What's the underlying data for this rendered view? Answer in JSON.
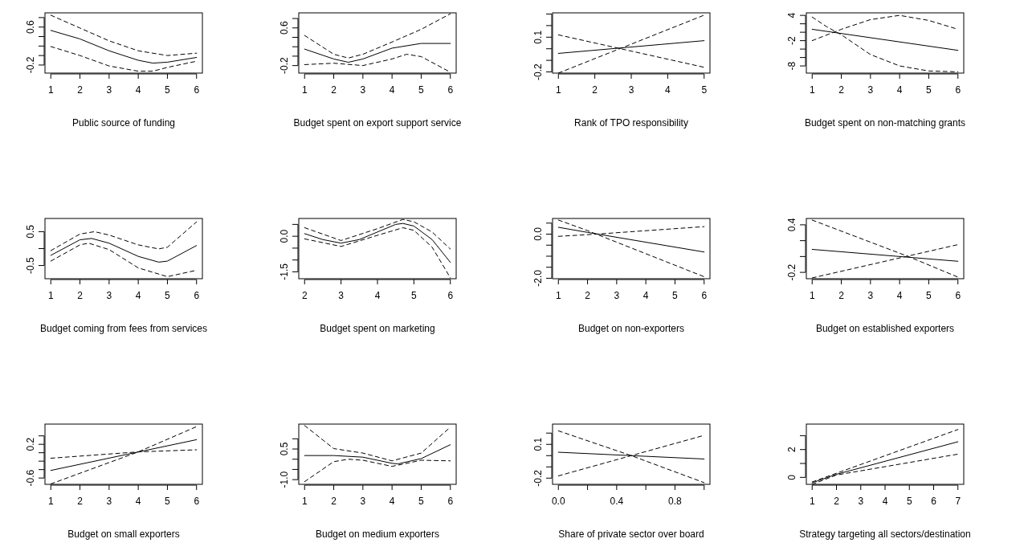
{
  "chart_data": [
    {
      "type": "line",
      "xlabel": "Public source of funding",
      "xlim": [
        0.8,
        6.2
      ],
      "xticks": [
        1,
        2,
        3,
        4,
        5,
        6
      ],
      "ylim": [
        -0.37,
        0.9
      ],
      "yticks": [
        -0.2,
        {
          "value": 0,
          "label": null
        },
        {
          "value": 0.2,
          "label": null
        },
        {
          "value": 0.4,
          "label": null
        },
        0.6,
        {
          "value": 0.8,
          "label": null
        }
      ],
      "series": [
        {
          "color": "#000000",
          "line_style": "solid",
          "x": [
            1,
            2,
            3,
            4,
            4.5,
            5,
            6
          ],
          "values": [
            0.53,
            0.35,
            0.1,
            -0.1,
            -0.16,
            -0.14,
            -0.04
          ]
        },
        {
          "color": "#000000",
          "line_style": "dashed",
          "x": [
            1,
            2,
            3,
            4,
            5,
            6
          ],
          "values": [
            0.85,
            0.58,
            0.31,
            0.1,
            0.0,
            0.05
          ]
        },
        {
          "color": "#000000",
          "line_style": "dashed",
          "x": [
            1,
            2,
            3,
            4,
            4.5,
            5,
            6
          ],
          "values": [
            0.19,
            0,
            -0.22,
            -0.33,
            -0.33,
            -0.25,
            -0.12
          ]
        }
      ]
    },
    {
      "type": "line",
      "xlabel": "Budget spent on export support service",
      "xlim": [
        0.8,
        6.2
      ],
      "xticks": [
        1,
        2,
        3,
        4,
        5,
        6
      ],
      "ylim": [
        -0.36,
        0.92
      ],
      "yticks": [
        -0.2,
        {
          "value": 0,
          "label": null
        },
        {
          "value": 0.2,
          "label": null
        },
        {
          "value": 0.4,
          "label": null
        },
        0.6,
        {
          "value": 0.8,
          "label": null
        }
      ],
      "series": [
        {
          "color": "#000000",
          "line_style": "solid",
          "x": [
            1,
            2,
            2.5,
            3,
            4,
            5,
            6
          ],
          "values": [
            0.15,
            -0.06,
            -0.13,
            -0.06,
            0.17,
            0.27,
            0.27
          ]
        },
        {
          "color": "#000000",
          "line_style": "dashed",
          "x": [
            1,
            2,
            2.5,
            3,
            4,
            5,
            6
          ],
          "values": [
            0.44,
            0.04,
            -0.04,
            0.04,
            0.3,
            0.57,
            0.9
          ]
        },
        {
          "color": "#000000",
          "line_style": "dashed",
          "x": [
            1,
            2,
            3,
            4,
            4.5,
            5,
            6
          ],
          "values": [
            -0.18,
            -0.15,
            -0.2,
            -0.06,
            0.04,
            -0.01,
            -0.34
          ]
        }
      ]
    },
    {
      "type": "line",
      "xlabel": "Rank of TPO responsibility",
      "xlim": [
        0.84,
        5.16
      ],
      "xticks": [
        1,
        2,
        3,
        4,
        5
      ],
      "ylim": [
        -0.21,
        0.31
      ],
      "yticks": [
        -0.2,
        {
          "value": -0.1,
          "label": null
        },
        {
          "value": 0,
          "label": null
        },
        0.1,
        {
          "value": 0.2,
          "label": null
        },
        {
          "value": 0.3,
          "label": null
        }
      ],
      "series": [
        {
          "color": "#000000",
          "line_style": "solid",
          "x": [
            1,
            5
          ],
          "values": [
            -0.04,
            0.07
          ]
        },
        {
          "color": "#000000",
          "line_style": "dashed",
          "x": [
            1,
            5
          ],
          "values": [
            -0.21,
            0.29
          ]
        },
        {
          "color": "#000000",
          "line_style": "dashed",
          "x": [
            1,
            5
          ],
          "values": [
            0.12,
            -0.16
          ]
        }
      ]
    },
    {
      "type": "line",
      "xlabel": "Budget spent on non-matching grants",
      "xlim": [
        0.8,
        6.2
      ],
      "xticks": [
        1,
        2,
        3,
        4,
        5,
        6
      ],
      "ylim": [
        -9.7,
        4.6
      ],
      "yticks": [
        -8,
        {
          "value": -6,
          "label": null
        },
        {
          "value": -4,
          "label": null
        },
        -2,
        {
          "value": 0,
          "label": null
        },
        {
          "value": 2,
          "label": null
        },
        4
      ],
      "series": [
        {
          "color": "#000000",
          "line_style": "solid",
          "x": [
            1,
            6
          ],
          "values": [
            0.7,
            -4.3
          ]
        },
        {
          "color": "#000000",
          "line_style": "dashed",
          "x": [
            1,
            2,
            3,
            4,
            5,
            6
          ],
          "values": [
            -2,
            0.7,
            3,
            4,
            2.8,
            0.7
          ]
        },
        {
          "color": "#000000",
          "line_style": "dashed",
          "x": [
            1,
            1.5,
            2,
            3,
            4,
            5,
            6
          ],
          "values": [
            3.6,
            1.3,
            -0.6,
            -5.3,
            -8,
            -9.2,
            -9.4
          ]
        }
      ]
    },
    {
      "type": "line",
      "xlabel": "Budget coming from fees from services",
      "xlim": [
        0.8,
        6.2
      ],
      "xticks": [
        1,
        2,
        3,
        4,
        5,
        6
      ],
      "ylim": [
        -0.89,
        0.89
      ],
      "yticks": [
        -0.5,
        {
          "value": 0,
          "label": null
        },
        0.5
      ],
      "series": [
        {
          "color": "#000000",
          "line_style": "solid",
          "x": [
            1,
            2,
            2.4,
            3,
            4,
            4.7,
            5,
            6
          ],
          "values": [
            -0.2,
            0.26,
            0.3,
            0.16,
            -0.23,
            -0.4,
            -0.37,
            0.09
          ]
        },
        {
          "color": "#000000",
          "line_style": "dashed",
          "x": [
            1,
            2,
            2.5,
            3,
            4,
            4.7,
            5,
            6
          ],
          "values": [
            -0.06,
            0.43,
            0.5,
            0.4,
            0.11,
            -0.01,
            0.04,
            0.79
          ]
        },
        {
          "color": "#000000",
          "line_style": "dashed",
          "x": [
            1,
            2,
            2.3,
            3,
            4,
            5,
            6
          ],
          "values": [
            -0.37,
            0.11,
            0.16,
            -0.03,
            -0.57,
            -0.83,
            -0.64
          ]
        }
      ]
    },
    {
      "type": "line",
      "xlabel": "Budget spent on marketing",
      "xlim": [
        1.84,
        6.16
      ],
      "xticks": [
        2,
        3,
        4,
        5,
        6
      ],
      "ylim": [
        -1.79,
        0.75
      ],
      "yticks": [
        -1.5,
        {
          "value": -1,
          "label": null
        },
        {
          "value": -0.5,
          "label": null
        },
        {
          "value": 0,
          "label": "0.0"
        },
        {
          "value": 0.5,
          "label": null
        }
      ],
      "series": [
        {
          "color": "#000000",
          "line_style": "solid",
          "x": [
            2,
            2.5,
            3,
            3.5,
            4,
            4.5,
            4.7,
            5,
            5.5,
            6
          ],
          "values": [
            0.11,
            -0.14,
            -0.29,
            -0.14,
            0.18,
            0.5,
            0.54,
            0.43,
            -0.14,
            -1.1
          ]
        },
        {
          "color": "#000000",
          "line_style": "dashed",
          "x": [
            2,
            3,
            4,
            4.7,
            5,
            5.5,
            6
          ],
          "values": [
            0.36,
            -0.18,
            0.32,
            0.71,
            0.61,
            0.18,
            -0.54
          ]
        },
        {
          "color": "#000000",
          "line_style": "dashed",
          "x": [
            2,
            3,
            4,
            4.7,
            5,
            5.5,
            6
          ],
          "values": [
            -0.11,
            -0.43,
            0.04,
            0.36,
            0.25,
            -0.46,
            -1.75
          ]
        }
      ]
    },
    {
      "type": "line",
      "xlabel": "Budget on non-exporters",
      "xlim": [
        0.8,
        6.2
      ],
      "xticks": [
        1,
        2,
        3,
        4,
        5,
        6
      ],
      "ylim": [
        -2.02,
        0.71
      ],
      "yticks": [
        {
          "value": -2,
          "label": "-2.0"
        },
        {
          "value": -1.5,
          "label": null
        },
        {
          "value": -1,
          "label": null
        },
        {
          "value": -0.5,
          "label": null
        },
        {
          "value": 0,
          "label": "0.0"
        },
        {
          "value": 0.5,
          "label": null
        }
      ],
      "series": [
        {
          "color": "#000000",
          "line_style": "solid",
          "x": [
            1,
            2,
            6
          ],
          "values": [
            0.31,
            0.08,
            -0.81
          ]
        },
        {
          "color": "#000000",
          "line_style": "dashed",
          "x": [
            1,
            2,
            2.3,
            6
          ],
          "values": [
            0.64,
            0.16,
            0,
            -1.93
          ]
        },
        {
          "color": "#000000",
          "line_style": "dashed",
          "x": [
            1,
            2.3,
            6
          ],
          "values": [
            -0.1,
            0,
            0.34
          ]
        }
      ]
    },
    {
      "type": "line",
      "xlabel": "Budget on established exporters",
      "xlim": [
        0.8,
        6.2
      ],
      "xticks": [
        1,
        2,
        3,
        4,
        5,
        6
      ],
      "ylim": [
        -0.28,
        0.48
      ],
      "yticks": [
        -0.2,
        {
          "value": 0,
          "label": null
        },
        {
          "value": 0.2,
          "label": null
        },
        0.4
      ],
      "series": [
        {
          "color": "#000000",
          "line_style": "solid",
          "x": [
            1,
            6
          ],
          "values": [
            0.09,
            -0.06
          ]
        },
        {
          "color": "#000000",
          "line_style": "dashed",
          "x": [
            1,
            4.3,
            6
          ],
          "values": [
            0.46,
            0,
            -0.26
          ]
        },
        {
          "color": "#000000",
          "line_style": "dashed",
          "x": [
            1,
            6
          ],
          "values": [
            -0.27,
            0.15
          ]
        }
      ]
    },
    {
      "type": "line",
      "xlabel": "Budget on small exporters",
      "xlim": [
        0.8,
        6.2
      ],
      "xticks": [
        1,
        2,
        3,
        4,
        5,
        6
      ],
      "ylim": [
        -0.75,
        0.68
      ],
      "yticks": [
        -0.6,
        {
          "value": -0.4,
          "label": null
        },
        {
          "value": -0.2,
          "label": null
        },
        {
          "value": 0,
          "label": null
        },
        0.2,
        {
          "value": 0.4,
          "label": null
        }
      ],
      "series": [
        {
          "color": "#000000",
          "line_style": "solid",
          "x": [
            1,
            6
          ],
          "values": [
            -0.42,
            0.31
          ]
        },
        {
          "color": "#000000",
          "line_style": "dashed",
          "x": [
            1,
            4,
            6
          ],
          "values": [
            -0.74,
            0.02,
            0.62
          ]
        },
        {
          "color": "#000000",
          "line_style": "dashed",
          "x": [
            1,
            4,
            6
          ],
          "values": [
            -0.13,
            0.02,
            0.07
          ]
        }
      ]
    },
    {
      "type": "line",
      "xlabel": "Budget on medium exporters",
      "xlim": [
        0.8,
        6.2
      ],
      "xticks": [
        1,
        2,
        3,
        4,
        5,
        6
      ],
      "ylim": [
        -1.23,
        1.72
      ],
      "yticks": [
        {
          "value": -1,
          "label": "-1.0"
        },
        {
          "value": -0.5,
          "label": null
        },
        {
          "value": 0,
          "label": null
        },
        0.5,
        {
          "value": 1,
          "label": null
        }
      ],
      "series": [
        {
          "color": "#000000",
          "line_style": "solid",
          "x": [
            1,
            2,
            3,
            4,
            4.2,
            5,
            6
          ],
          "values": [
            0.18,
            0.18,
            0.1,
            -0.2,
            -0.23,
            0.03,
            0.71
          ]
        },
        {
          "color": "#000000",
          "line_style": "dashed",
          "x": [
            1,
            2,
            3,
            4,
            5,
            6
          ],
          "values": [
            1.65,
            0.52,
            0.3,
            -0.08,
            0.3,
            1.57
          ]
        },
        {
          "color": "#000000",
          "line_style": "dashed",
          "x": [
            1,
            2,
            2.5,
            3,
            4,
            5,
            6
          ],
          "values": [
            -1.1,
            -0.12,
            0,
            -0.05,
            -0.35,
            -0.05,
            -0.08
          ]
        }
      ]
    },
    {
      "type": "line",
      "xlabel": "Share of private sector over board",
      "xlim": [
        -0.04,
        1.04
      ],
      "xticks": [
        {
          "value": 0,
          "label": "0.0"
        },
        {
          "value": 0.2,
          "label": null
        },
        0.4,
        {
          "value": 0.6,
          "label": null
        },
        0.8,
        {
          "value": 1,
          "label": null
        }
      ],
      "ylim": [
        -0.255,
        0.28
      ],
      "yticks": [
        -0.2,
        {
          "value": -0.1,
          "label": null
        },
        {
          "value": 0,
          "label": null
        },
        0.1,
        {
          "value": 0.2,
          "label": null
        }
      ],
      "series": [
        {
          "color": "#000000",
          "line_style": "solid",
          "x": [
            0,
            1
          ],
          "values": [
            0.03,
            -0.03
          ]
        },
        {
          "color": "#000000",
          "line_style": "dashed",
          "x": [
            0,
            0.5,
            1
          ],
          "values": [
            0.22,
            0,
            -0.24
          ]
        },
        {
          "color": "#000000",
          "line_style": "dashed",
          "x": [
            0,
            1
          ],
          "values": [
            -0.18,
            0.18
          ]
        }
      ]
    },
    {
      "type": "line",
      "xlabel": "Strategy targeting all sectors/destination",
      "xlim": [
        0.76,
        7.24
      ],
      "xticks": [
        1,
        2,
        3,
        4,
        5,
        6,
        7
      ],
      "ylim": [
        -0.5,
        3.83
      ],
      "yticks": [
        0,
        {
          "value": 1,
          "label": null
        },
        2,
        {
          "value": 3,
          "label": null
        }
      ],
      "series": [
        {
          "color": "#000000",
          "line_style": "solid",
          "x": [
            1,
            2,
            7
          ],
          "values": [
            -0.39,
            0.22,
            2.56
          ]
        },
        {
          "color": "#000000",
          "line_style": "dashed",
          "x": [
            1,
            7
          ],
          "values": [
            -0.33,
            3.44
          ]
        },
        {
          "color": "#000000",
          "line_style": "dashed",
          "x": [
            1,
            2,
            7
          ],
          "values": [
            -0.5,
            0.17,
            1.67
          ]
        }
      ]
    }
  ]
}
